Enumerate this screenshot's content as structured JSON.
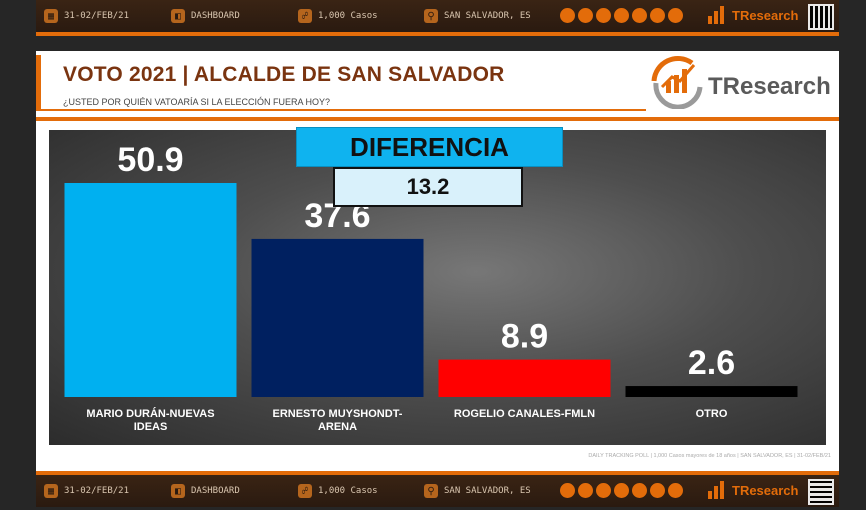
{
  "header_strip": {
    "date": "31-02/FEB/21",
    "dashboard": "DASHBOARD",
    "cases": "1,000 Casos",
    "location": "SAN SALVADOR, ES",
    "brand": "TResearch"
  },
  "footer_strip": {
    "date": "31-02/FEB/21",
    "dashboard": "DASHBOARD",
    "cases": "1,000 Casos",
    "location": "SAN SALVADOR, ES",
    "brand": "TResearch"
  },
  "panel": {
    "title": "VOTO 2021 | ALCALDE DE SAN SALVADOR",
    "subtitle": "¿USTED POR QUIÉN VATOARÍA SI LA ELECCIÓN FUERA HOY?",
    "brand": "TResearch",
    "footnote": "DAILY TRACKING POLL | 1,000 Casos mayores de 18 años | SAN SALVADOR, ES | 31-02/FEB/21"
  },
  "difference": {
    "label": "DIFERENCIA",
    "value": "13.2"
  },
  "colors": {
    "accent": "#e36c0a",
    "title": "#7a3410",
    "diff_box": "#0fb3ef"
  },
  "chart_data": {
    "type": "bar",
    "categories": [
      [
        "MARIO DURÁN-NUEVAS",
        "IDEAS"
      ],
      [
        "ERNESTO MUYSHONDT-",
        "ARENA"
      ],
      [
        "ROGELIO CANALES-FMLN"
      ],
      [
        "OTRO"
      ]
    ],
    "values": [
      50.9,
      37.6,
      8.9,
      2.6
    ],
    "value_labels": [
      "50.9",
      "37.6",
      "8.9",
      "2.6"
    ],
    "bar_colors": [
      "#00b0f0",
      "#002060",
      "#ff0000",
      "#000000"
    ],
    "ylim": [
      0,
      60
    ],
    "grid": false,
    "legend": "none"
  }
}
